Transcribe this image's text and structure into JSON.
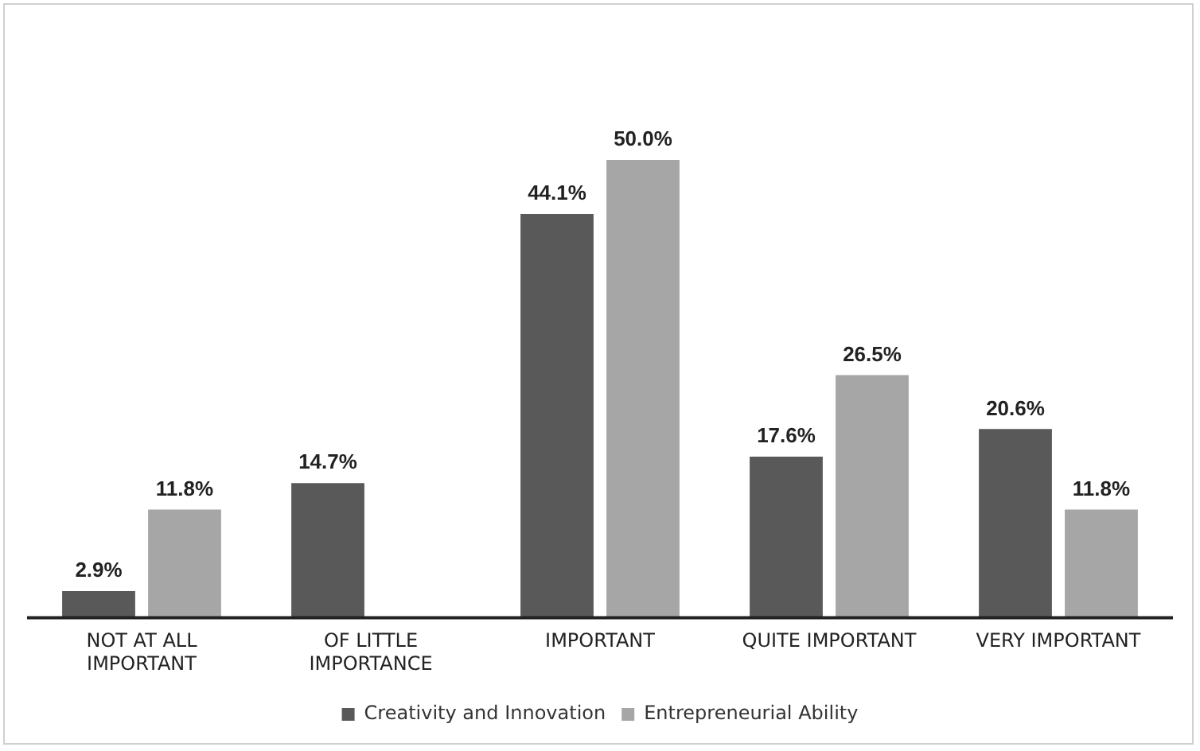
{
  "chart_data": {
    "type": "bar",
    "categories": [
      "NOT AT ALL IMPORTANT",
      "OF LITTLE IMPORTANCE",
      "IMPORTANT",
      "QUITE IMPORTANT",
      "VERY IMPORTANT"
    ],
    "series": [
      {
        "name": "Creativity and Innovation",
        "color": "#595959",
        "values": [
          2.9,
          14.7,
          44.1,
          17.6,
          20.6
        ],
        "value_labels": [
          "2.9%",
          "14.7%",
          "44.1%",
          "17.6%",
          "20.6%"
        ]
      },
      {
        "name": "Entrepreneurial Ability",
        "color": "#a6a6a6",
        "values": [
          11.8,
          null,
          50.0,
          26.5,
          11.8
        ],
        "value_labels": [
          "11.8%",
          null,
          "50.0%",
          "26.5%",
          "11.8%"
        ]
      }
    ],
    "legend": "bottom",
    "grid": false
  }
}
